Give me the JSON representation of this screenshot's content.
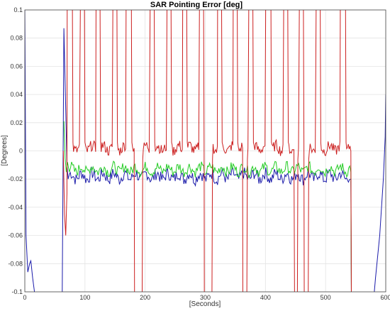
{
  "chart_data": {
    "type": "line",
    "title": "SAR Pointing Error [deg]",
    "xlabel": "[Seconds]",
    "ylabel": "[Degrees]",
    "xlim": [
      0,
      600
    ],
    "ylim": [
      -0.1,
      0.1
    ],
    "grid": true,
    "legend": "none",
    "x_ticks": [
      0,
      100,
      200,
      300,
      400,
      500,
      600
    ],
    "y_ticks": [
      -0.1,
      -0.08,
      -0.06,
      -0.04,
      -0.02,
      0,
      0.02,
      0.04,
      0.06,
      0.08,
      0.1
    ],
    "x_tick_labels": [
      "0",
      "100",
      "200",
      "300",
      "400",
      "500",
      "600"
    ],
    "y_tick_labels": [
      "-0.1",
      "-0.08",
      "-0.06",
      "-0.04",
      "-0.02",
      "0",
      "0.02",
      "0.04",
      "0.06",
      "0.08",
      "0.1"
    ],
    "series": [
      {
        "color": "#cc1f1f",
        "baseline": 0.0,
        "up_spikes": [
          [
            70,
            80
          ],
          [
            92,
            100
          ],
          [
            118,
            126
          ],
          [
            146,
            154
          ],
          [
            168,
            178
          ],
          [
            208,
            216
          ],
          [
            236,
            244
          ],
          [
            262,
            270
          ],
          [
            290,
            298
          ],
          [
            320,
            328
          ],
          [
            346,
            354
          ],
          [
            372,
            380
          ],
          [
            400,
            410
          ],
          [
            430,
            438
          ],
          [
            456,
            464
          ],
          [
            484,
            492
          ],
          [
            524,
            534
          ]
        ],
        "down_spikes": [
          [
            182,
            196
          ],
          [
            298,
            312
          ],
          [
            362,
            370
          ],
          [
            448,
            454
          ],
          [
            464,
            472
          ]
        ]
      },
      {
        "color": "#22cc22",
        "baseline": -0.013,
        "start_x": 65,
        "end_x": 543
      },
      {
        "color": "#1a1aaa",
        "baseline": -0.018,
        "start_x": 65,
        "end_x": 543
      }
    ]
  }
}
